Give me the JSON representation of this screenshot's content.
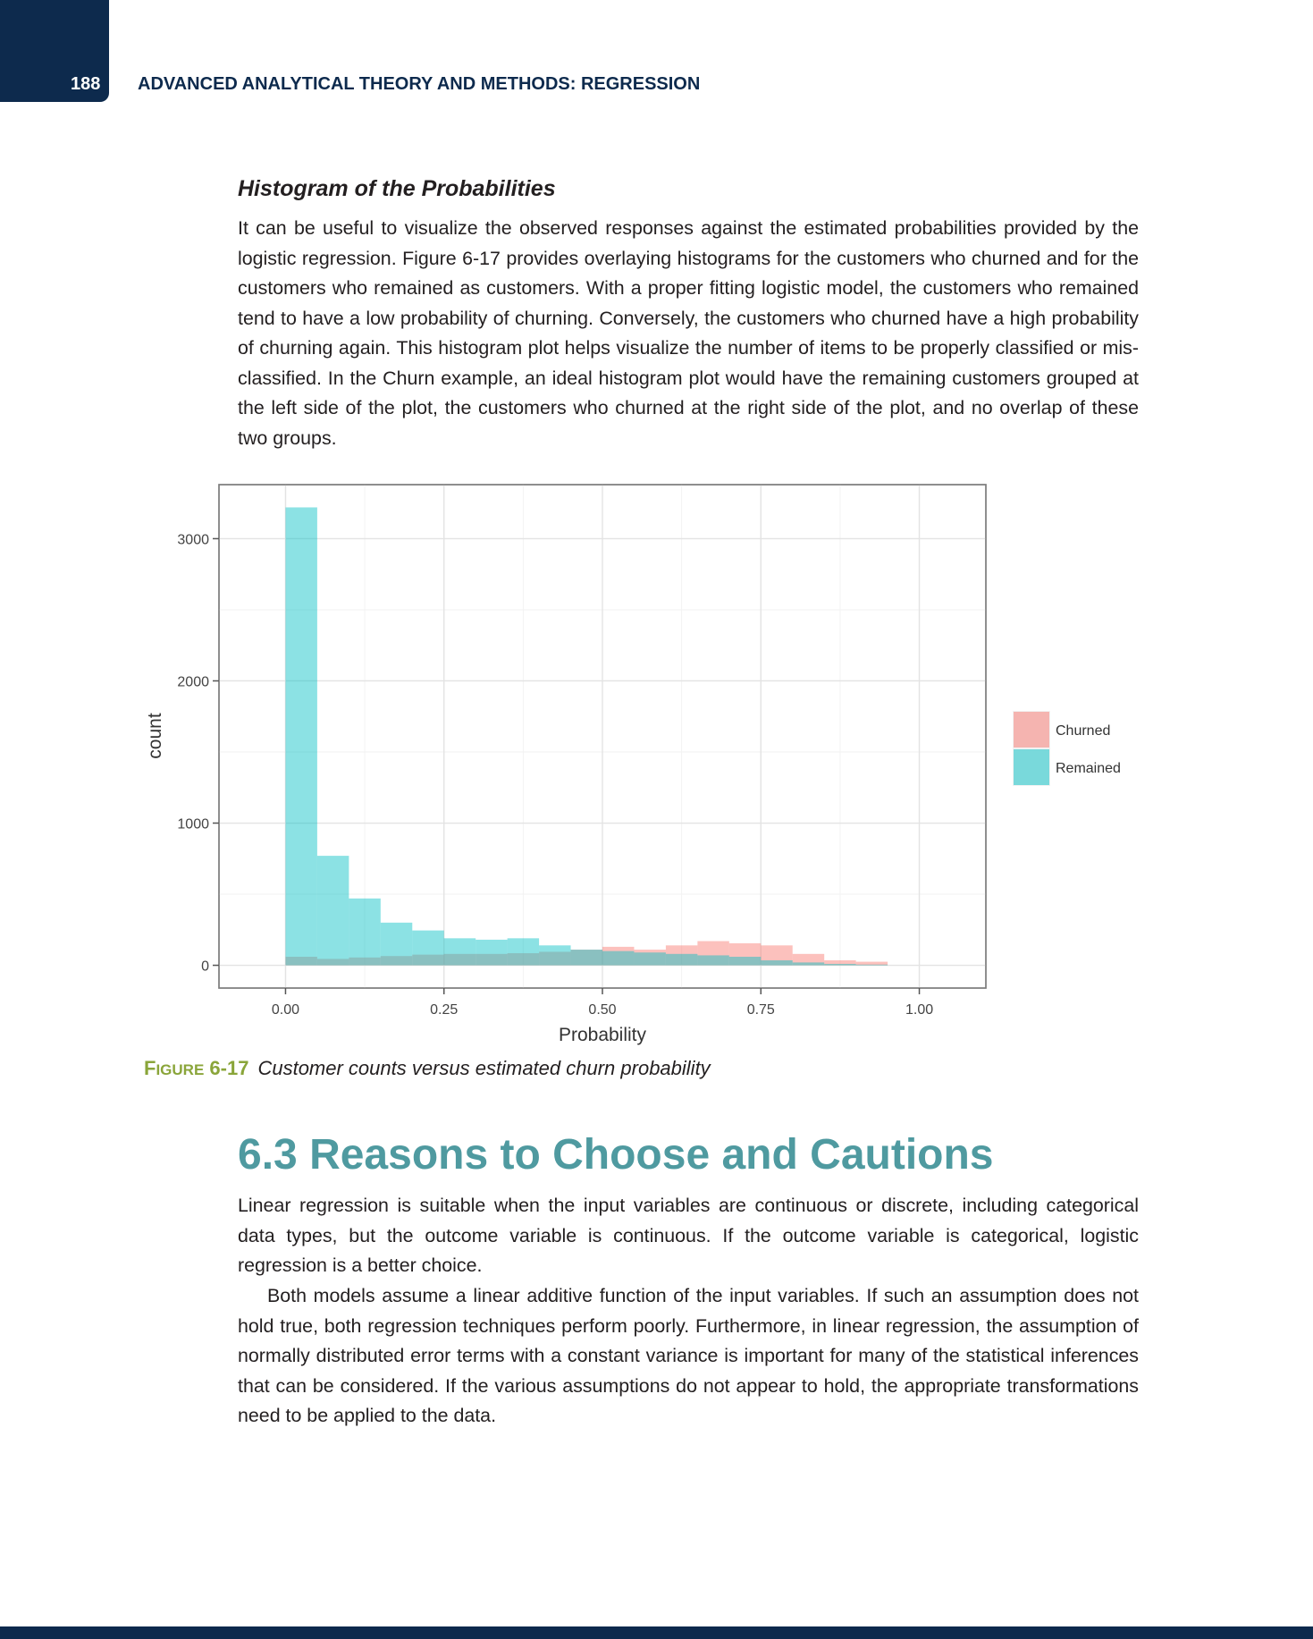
{
  "header": {
    "page_number": "188",
    "running_title": "ADVANCED ANALYTICAL THEORY AND METHODS: REGRESSION"
  },
  "subsection": {
    "title": "Histogram of the Probabilities",
    "paragraph": "It can be useful to visualize the observed responses against the estimated probabilities provided by the logistic regression. Figure 6-17 provides overlaying histograms for the customers who churned and for the customers who remained as customers. With a proper fitting logistic model, the customers who remained tend to have a low probability of churning. Conversely, the customers who churned have a high probability of churning again. This histogram plot helps visualize the number of items to be properly classified or mis-classified. In the Churn example, an ideal histogram plot would have the remaining customers grouped at the left side of the plot, the customers who churned at the right side of the plot, and no overlap of these two groups."
  },
  "figure": {
    "label_prefix": "F",
    "label_smallcaps": "IGURE",
    "label_number": " 6-17",
    "caption": "Customer counts versus estimated churn probability"
  },
  "chart_data": {
    "type": "bar",
    "xlabel": "Probability",
    "ylabel": "count",
    "xlim": [
      -0.105,
      1.105
    ],
    "ylim": [
      -160,
      3380
    ],
    "x_ticks": [
      0.0,
      0.25,
      0.5,
      0.75,
      1.0
    ],
    "x_tick_labels": [
      "0.00",
      "0.25",
      "0.50",
      "0.75",
      "1.00"
    ],
    "y_ticks": [
      0,
      1000,
      2000,
      3000
    ],
    "y_tick_labels": [
      "0",
      "1000",
      "2000",
      "3000"
    ],
    "bin_width": 0.05,
    "bin_starts": [
      0.0,
      0.05,
      0.1,
      0.15,
      0.2,
      0.25,
      0.3,
      0.35,
      0.4,
      0.45,
      0.5,
      0.55,
      0.6,
      0.65,
      0.7,
      0.75,
      0.8,
      0.85,
      0.9
    ],
    "grid": true,
    "legend_position": "right",
    "series": [
      {
        "name": "Churned",
        "color": "#f8766d",
        "values": [
          60,
          45,
          55,
          65,
          75,
          80,
          80,
          85,
          95,
          110,
          130,
          110,
          140,
          170,
          155,
          140,
          80,
          35,
          25
        ]
      },
      {
        "name": "Remained",
        "color": "#00bfc4",
        "values": [
          3220,
          770,
          470,
          300,
          245,
          190,
          180,
          190,
          140,
          110,
          100,
          90,
          80,
          70,
          60,
          35,
          20,
          10,
          5
        ]
      }
    ]
  },
  "section": {
    "heading": "6.3 Reasons to Choose and Cautions",
    "paragraph1": "Linear regression is suitable when the input variables are continuous or discrete, including categorical data types, but the outcome variable is continuous. If the outcome variable is categorical, logistic regression is a better choice.",
    "paragraph2": "Both models assume a linear additive function of the input variables. If such an assumption does not hold true, both regression techniques perform poorly. Furthermore, in linear regression, the assumption of normally distributed error terms with a constant variance is important for many of the statistical inferences that can be considered. If the various assumptions do not appear to hold, the appropriate transformations need to be applied to the data."
  }
}
